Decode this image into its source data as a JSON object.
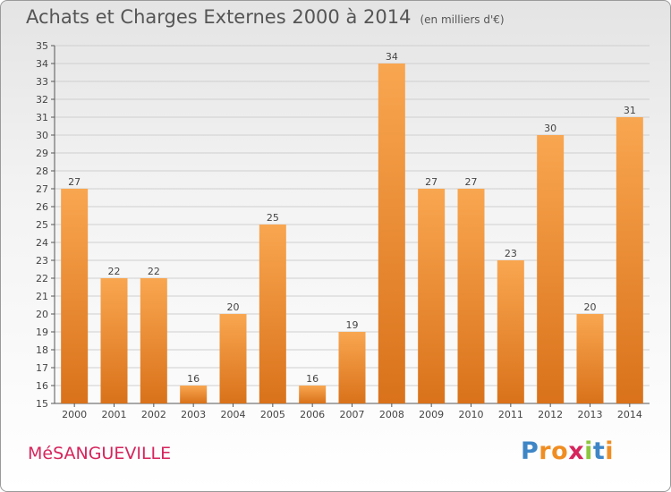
{
  "header": {
    "title": "Achats et Charges Externes 2000 à 2014",
    "unit": "(en milliers d'€)"
  },
  "footer": {
    "commune": "MéSANGUEVILLE",
    "logo_letters": [
      {
        "ch": "P",
        "color": "#3e86c6"
      },
      {
        "ch": "r",
        "color": "#f08d22"
      },
      {
        "ch": "o",
        "color": "#f08d22"
      },
      {
        "ch": "x",
        "color": "#d6255d"
      },
      {
        "ch": "i",
        "color": "#8dc63f"
      },
      {
        "ch": "t",
        "color": "#3e86c6"
      },
      {
        "ch": "i",
        "color": "#f08d22"
      }
    ]
  },
  "colors": {
    "bar_light": "#f9a650",
    "bar_dark": "#d9721a",
    "grid": "#cfcfcf",
    "axis": "#555555"
  },
  "chart_data": {
    "type": "bar",
    "title": "Achats et Charges Externes 2000 à 2014",
    "categories": [
      "2000",
      "2001",
      "2002",
      "2003",
      "2004",
      "2005",
      "2006",
      "2007",
      "2008",
      "2009",
      "2010",
      "2011",
      "2012",
      "2013",
      "2014"
    ],
    "values": [
      27,
      22,
      22,
      16,
      20,
      25,
      16,
      19,
      34,
      27,
      27,
      23,
      30,
      20,
      31
    ],
    "xlabel": "",
    "ylabel": "",
    "ylim": [
      15,
      35
    ],
    "yticks": [
      15,
      16,
      17,
      18,
      19,
      20,
      21,
      22,
      23,
      24,
      25,
      26,
      27,
      28,
      29,
      30,
      31,
      32,
      33,
      34,
      35
    ],
    "grid": true,
    "data_labels": true
  }
}
